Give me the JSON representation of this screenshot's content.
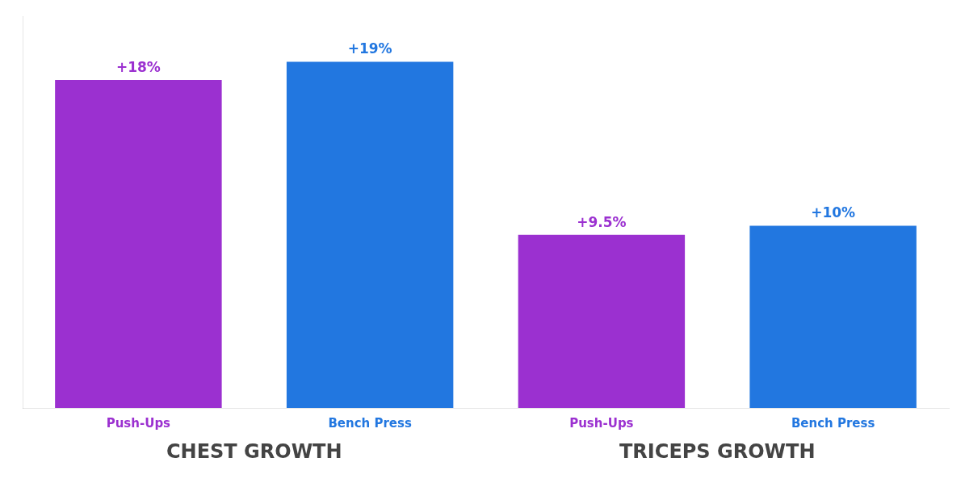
{
  "chart_data": {
    "type": "bar",
    "categories": [
      "Push-Ups",
      "Bench Press",
      "Push-Ups",
      "Bench Press"
    ],
    "values": [
      18,
      19,
      9.5,
      10
    ],
    "value_labels": [
      "+18%",
      "+19%",
      "+9.5%",
      "+10%"
    ],
    "data_labels": true,
    "colors": [
      "#9b30d0",
      "#2277e0",
      "#9b30d0",
      "#2277e0"
    ],
    "annotations": [
      "CHEST GROWTH",
      "TRICEPS GROWTH"
    ],
    "ylim": [
      0,
      21.5
    ],
    "tick_labels": "x",
    "grid": false
  }
}
